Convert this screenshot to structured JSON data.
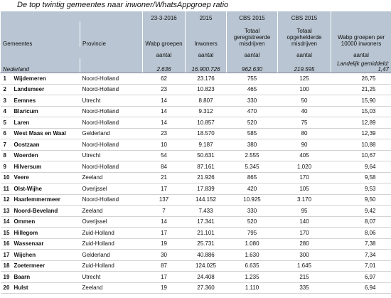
{
  "title": "De top twintig gemeentes naar inwoner/WhatsAppgroep ratio",
  "header": {
    "dates": [
      "23-3-2016",
      "2015",
      "CBS 2015",
      "CBS 2015"
    ],
    "columns": [
      "Gemeentes",
      "Provincie",
      "Wabp groepen",
      "Inwoners",
      "Totaal geregistreerde misdrijven",
      "Totaal opgehelderde misdrijven",
      "Wabp groepen per 10000 inwoners"
    ],
    "units": [
      "aantal",
      "aantal",
      "aantal",
      "aantal",
      "aantal"
    ]
  },
  "national": {
    "name": "Nederland",
    "values": [
      "2.636",
      "16.900.726",
      "962.630",
      "219.595"
    ],
    "note": "Landelijk gemiddeld: 1,47"
  },
  "table": {
    "rows": [
      [
        "1",
        "Wijdemeren",
        "Noord-Holland",
        "62",
        "23.176",
        "755",
        "125",
        "26,75"
      ],
      [
        "2",
        "Landsmeer",
        "Noord-Holland",
        "23",
        "10.823",
        "465",
        "100",
        "21,25"
      ],
      [
        "3",
        "Eemnes",
        "Utrecht",
        "14",
        "8.807",
        "330",
        "50",
        "15,90"
      ],
      [
        "4",
        "Blaricum",
        "Noord-Holland",
        "14",
        "9.312",
        "470",
        "40",
        "15,03"
      ],
      [
        "5",
        "Laren",
        "Noord-Holland",
        "14",
        "10.857",
        "520",
        "75",
        "12,89"
      ],
      [
        "6",
        "West Maas en Waal",
        "Gelderland",
        "23",
        "18.570",
        "585",
        "80",
        "12,39"
      ],
      [
        "7",
        "Oostzaan",
        "Noord-Holland",
        "10",
        "9.187",
        "380",
        "90",
        "10,88"
      ],
      [
        "8",
        "Woerden",
        "Utrecht",
        "54",
        "50.631",
        "2.555",
        "405",
        "10,67"
      ],
      [
        "9",
        "Hilversum",
        "Noord-Holland",
        "84",
        "87.161",
        "5.345",
        "1.020",
        "9,64"
      ],
      [
        "10",
        "Veere",
        "Zeeland",
        "21",
        "21.926",
        "865",
        "170",
        "9,58"
      ],
      [
        "11",
        "Olst-Wijhe",
        "Overijssel",
        "17",
        "17.839",
        "420",
        "105",
        "9,53"
      ],
      [
        "12",
        "Haarlemmermeer",
        "Noord-Holland",
        "137",
        "144.152",
        "10.925",
        "3.170",
        "9,50"
      ],
      [
        "13",
        "Noord-Beveland",
        "Zeeland",
        "7",
        "7.433",
        "330",
        "95",
        "9,42"
      ],
      [
        "14",
        "Ommen",
        "Overijssel",
        "14",
        "17.341",
        "520",
        "140",
        "8,07"
      ],
      [
        "15",
        "Hillegom",
        "Zuid-Holland",
        "17",
        "21.101",
        "795",
        "170",
        "8,06"
      ],
      [
        "16",
        "Wassenaar",
        "Zuid-Holland",
        "19",
        "25.731",
        "1.080",
        "280",
        "7,38"
      ],
      [
        "17",
        "Wijchen",
        "Gelderland",
        "30",
        "40.886",
        "1.630",
        "300",
        "7,34"
      ],
      [
        "18",
        "Zoetermeer",
        "Zuid-Holland",
        "87",
        "124.025",
        "6.635",
        "1.645",
        "7,01"
      ],
      [
        "19",
        "Baarn",
        "Utrecht",
        "17",
        "24.408",
        "1.235",
        "215",
        "6,97"
      ],
      [
        "20",
        "Hulst",
        "Zeeland",
        "19",
        "27.360",
        "1.110",
        "335",
        "6,94"
      ]
    ]
  }
}
